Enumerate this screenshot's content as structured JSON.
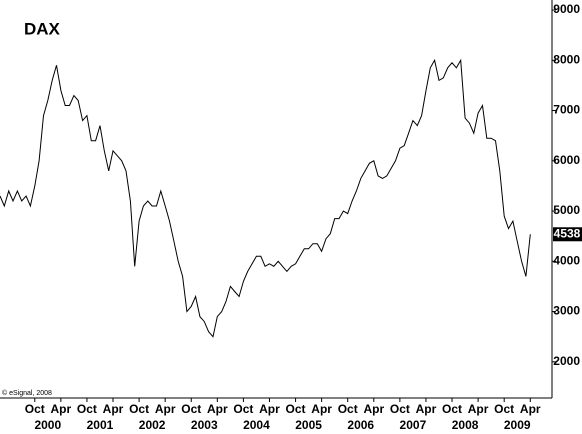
{
  "chart_data": {
    "type": "line",
    "title": "DAX",
    "source": "© eSignal, 2008",
    "color": "#000000",
    "x": [
      "1999-02",
      "1999-03",
      "1999-04",
      "1999-05",
      "1999-06",
      "1999-07",
      "1999-08",
      "1999-09",
      "1999-10",
      "1999-11",
      "1999-12",
      "2000-01",
      "2000-02",
      "2000-03",
      "2000-04",
      "2000-05",
      "2000-06",
      "2000-07",
      "2000-08",
      "2000-09",
      "2000-10",
      "2000-11",
      "2000-12",
      "2001-01",
      "2001-02",
      "2001-03",
      "2001-04",
      "2001-05",
      "2001-06",
      "2001-07",
      "2001-08",
      "2001-09",
      "2001-10",
      "2001-11",
      "2001-12",
      "2002-01",
      "2002-02",
      "2002-03",
      "2002-04",
      "2002-05",
      "2002-06",
      "2002-07",
      "2002-08",
      "2002-09",
      "2002-10",
      "2002-11",
      "2002-12",
      "2003-01",
      "2003-02",
      "2003-03",
      "2003-04",
      "2003-05",
      "2003-06",
      "2003-07",
      "2003-08",
      "2003-09",
      "2003-10",
      "2003-11",
      "2003-12",
      "2004-01",
      "2004-02",
      "2004-03",
      "2004-04",
      "2004-05",
      "2004-06",
      "2004-07",
      "2004-08",
      "2004-09",
      "2004-10",
      "2004-11",
      "2004-12",
      "2005-01",
      "2005-02",
      "2005-03",
      "2005-04",
      "2005-05",
      "2005-06",
      "2005-07",
      "2005-08",
      "2005-09",
      "2005-10",
      "2005-11",
      "2005-12",
      "2006-01",
      "2006-02",
      "2006-03",
      "2006-04",
      "2006-05",
      "2006-06",
      "2006-07",
      "2006-08",
      "2006-09",
      "2006-10",
      "2006-11",
      "2006-12",
      "2007-01",
      "2007-02",
      "2007-03",
      "2007-04",
      "2007-05",
      "2007-06",
      "2007-07",
      "2007-08",
      "2007-09",
      "2007-10",
      "2007-11",
      "2007-12",
      "2008-01",
      "2008-02",
      "2008-03",
      "2008-04",
      "2008-05",
      "2008-06",
      "2008-07",
      "2008-08",
      "2008-09",
      "2008-10",
      "2008-11",
      "2008-12",
      "2009-01",
      "2009-02",
      "2009-03",
      "2009-04"
    ],
    "values": [
      5300,
      5100,
      5400,
      5200,
      5400,
      5200,
      5300,
      5100,
      5500,
      6000,
      6900,
      7200,
      7600,
      7900,
      7400,
      7100,
      7100,
      7300,
      7200,
      6800,
      6900,
      6400,
      6400,
      6700,
      6200,
      5800,
      6200,
      6100,
      6000,
      5800,
      5200,
      3900,
      4800,
      5100,
      5200,
      5100,
      5100,
      5400,
      5100,
      4800,
      4400,
      4000,
      3700,
      3000,
      3100,
      3300,
      2900,
      2800,
      2600,
      2500,
      2900,
      3000,
      3200,
      3500,
      3400,
      3300,
      3600,
      3800,
      3950,
      4100,
      4100,
      3900,
      3950,
      3900,
      4000,
      3900,
      3800,
      3900,
      3950,
      4100,
      4250,
      4250,
      4350,
      4350,
      4200,
      4450,
      4550,
      4850,
      4850,
      5000,
      4950,
      5200,
      5400,
      5650,
      5800,
      5950,
      6000,
      5700,
      5650,
      5700,
      5850,
      6000,
      6250,
      6300,
      6550,
      6800,
      6700,
      6900,
      7400,
      7850,
      8000,
      7600,
      7650,
      7850,
      7950,
      7850,
      8000,
      6850,
      6750,
      6550,
      6950,
      7100,
      6450,
      6450,
      6400,
      5800,
      4900,
      4650,
      4800,
      4400,
      4000,
      3700,
      4538
    ],
    "xlim": [
      "1999-02",
      "2009-09"
    ],
    "xticks": [
      {
        "value": "1999-10",
        "label": "Oct"
      },
      {
        "value": "2000-04",
        "label": "Apr"
      },
      {
        "value": "2000-10",
        "label": "Oct"
      },
      {
        "value": "2001-04",
        "label": "Apr"
      },
      {
        "value": "2001-10",
        "label": "Oct"
      },
      {
        "value": "2002-04",
        "label": "Apr"
      },
      {
        "value": "2002-10",
        "label": "Oct"
      },
      {
        "value": "2003-04",
        "label": "Apr"
      },
      {
        "value": "2003-10",
        "label": "Oct"
      },
      {
        "value": "2004-04",
        "label": "Apr"
      },
      {
        "value": "2004-10",
        "label": "Oct"
      },
      {
        "value": "2005-04",
        "label": "Apr"
      },
      {
        "value": "2005-10",
        "label": "Oct"
      },
      {
        "value": "2006-04",
        "label": "Apr"
      },
      {
        "value": "2006-10",
        "label": "Oct"
      },
      {
        "value": "2007-04",
        "label": "Apr"
      },
      {
        "value": "2007-10",
        "label": "Oct"
      },
      {
        "value": "2008-04",
        "label": "Apr"
      },
      {
        "value": "2008-10",
        "label": "Oct"
      },
      {
        "value": "2009-04",
        "label": "Apr"
      }
    ],
    "year_ticks": [
      {
        "value": "2000-01",
        "label": "2000"
      },
      {
        "value": "2001-01",
        "label": "2001"
      },
      {
        "value": "2002-01",
        "label": "2002"
      },
      {
        "value": "2003-01",
        "label": "2003"
      },
      {
        "value": "2004-01",
        "label": "2004"
      },
      {
        "value": "2005-01",
        "label": "2005"
      },
      {
        "value": "2006-01",
        "label": "2006"
      },
      {
        "value": "2007-01",
        "label": "2007"
      },
      {
        "value": "2008-01",
        "label": "2008"
      },
      {
        "value": "2009-01",
        "label": "2009"
      }
    ],
    "ylim": [
      1280,
      9200
    ],
    "yticks": [
      2000,
      3000,
      4000,
      5000,
      6000,
      7000,
      8000,
      9000
    ],
    "grid": false
  }
}
